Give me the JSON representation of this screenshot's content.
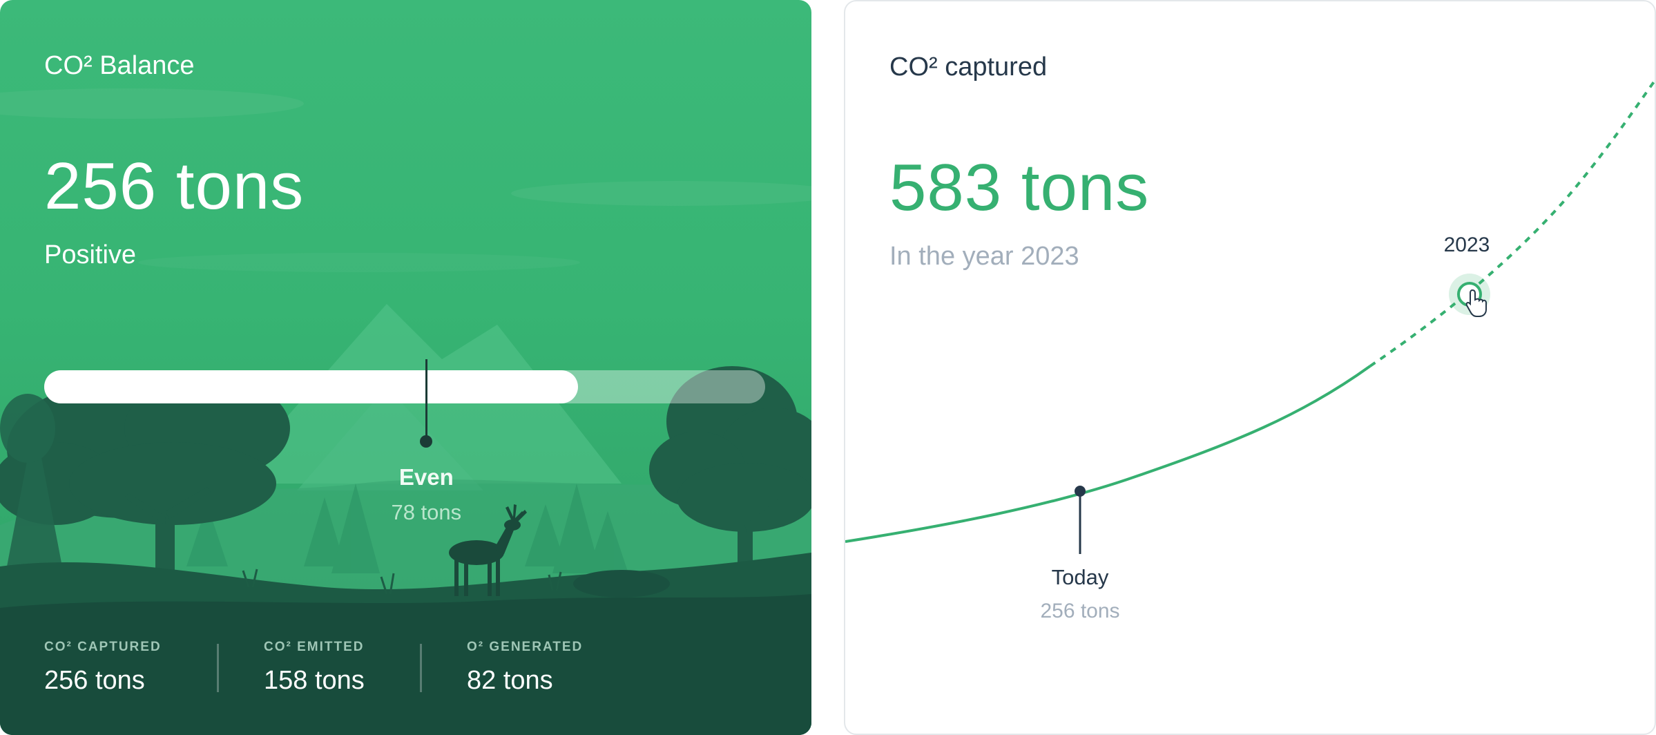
{
  "balance": {
    "title": "CO² Balance",
    "value": "256 tons",
    "status": "Positive",
    "progress_fraction": 0.74,
    "marker": {
      "label": "Even",
      "value": "78 tons",
      "fraction": 0.53
    },
    "stats": [
      {
        "label": "CO² CAPTURED",
        "value": "256 tons"
      },
      {
        "label": "CO² EMITTED",
        "value": "158 tons"
      },
      {
        "label": "O² GENERATED",
        "value": "82 tons"
      }
    ],
    "colors": {
      "accent": "#36b071",
      "dark": "#1b3b36"
    }
  },
  "captured": {
    "title": "CO² captured",
    "value": "583 tons",
    "period": "In the year 2023",
    "year_marker": {
      "label": "2023"
    },
    "today_marker": {
      "label": "Today",
      "value": "256 tons"
    },
    "colors": {
      "accent": "#36b071",
      "text": "#26384a",
      "muted": "#a2aebb"
    },
    "cursor_icon": "hand-pointer-icon"
  }
}
